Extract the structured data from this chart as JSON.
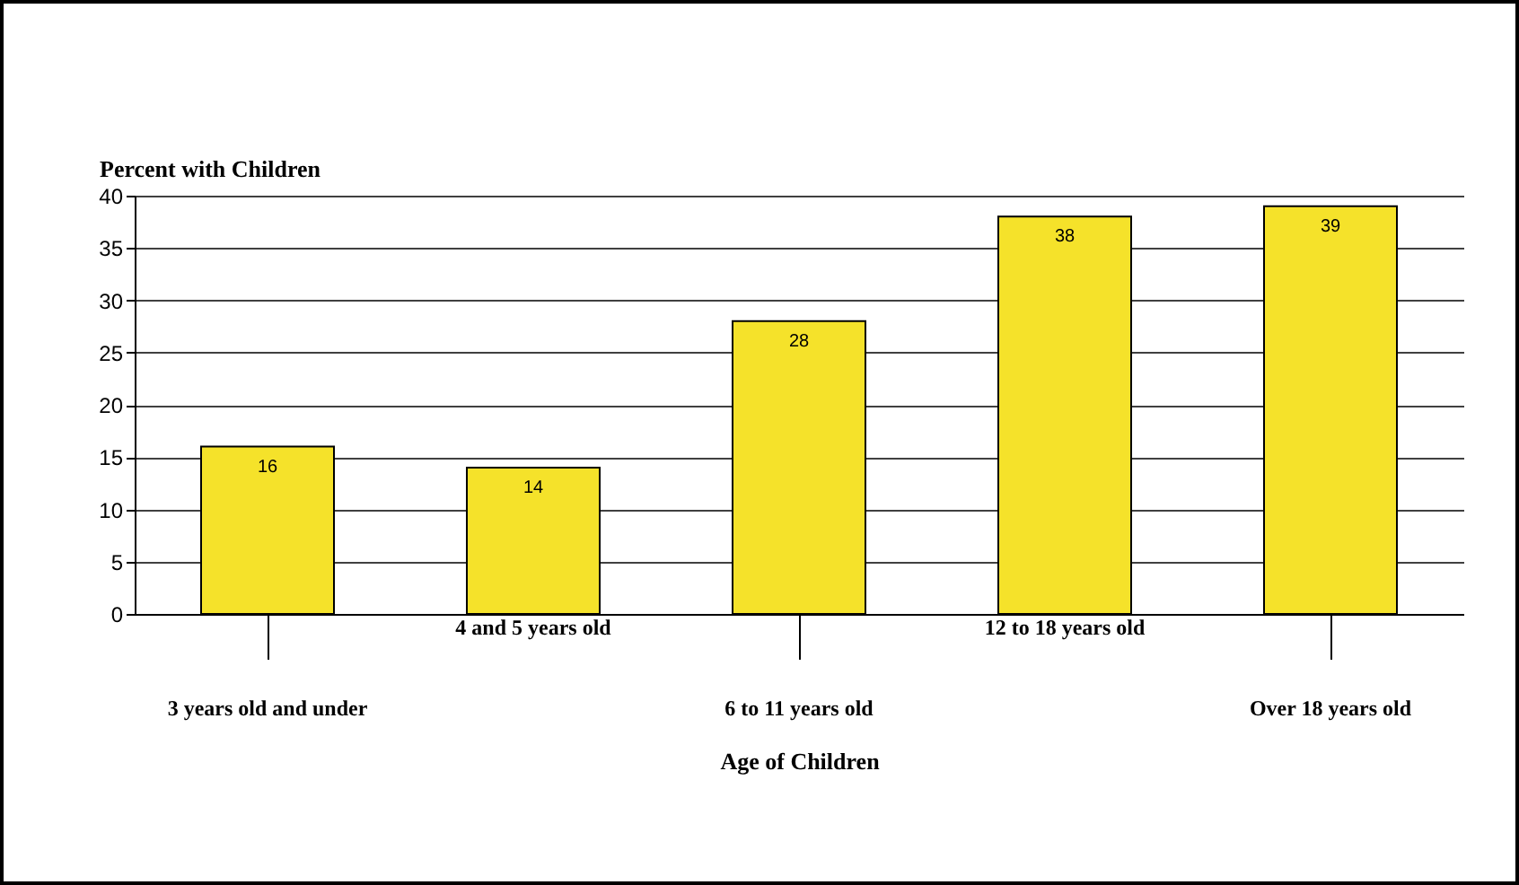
{
  "chart_data": {
    "type": "bar",
    "ylabel": "Percent with Children",
    "xlabel": "Age of Children",
    "categories": [
      "3 years old and under",
      "4 and 5 years old",
      "6 to 11 years old",
      "12 to 18 years old",
      "Over 18 years old"
    ],
    "values": [
      16,
      14,
      28,
      38,
      39
    ],
    "color": "#f5e22a",
    "ylim": [
      0,
      40
    ],
    "yticks": [
      0,
      5,
      10,
      15,
      20,
      25,
      30,
      35,
      40
    ],
    "grid": "y",
    "data_labels": true
  }
}
